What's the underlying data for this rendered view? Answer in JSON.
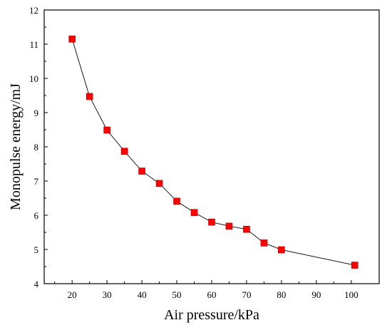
{
  "chart_data": {
    "type": "line",
    "title": "",
    "xlabel": "Air pressure/kPa",
    "ylabel": "Monopulse energy/mJ",
    "xlim": [
      12,
      108
    ],
    "ylim": [
      4,
      12
    ],
    "xticks": [
      20,
      30,
      40,
      50,
      60,
      70,
      80,
      90,
      100
    ],
    "yticks": [
      4,
      5,
      6,
      7,
      8,
      9,
      10,
      11,
      12
    ],
    "grid": false,
    "marker": "square",
    "colors": {
      "marker": "#ff0000",
      "line": "#000000"
    },
    "series": [
      {
        "x": [
          20,
          25,
          30,
          35,
          40,
          45,
          50,
          55,
          60,
          65,
          70,
          75,
          80,
          101
        ],
        "y": [
          11.15,
          9.47,
          8.49,
          7.87,
          7.29,
          6.93,
          6.41,
          6.08,
          5.8,
          5.68,
          5.59,
          5.19,
          4.99,
          4.54
        ]
      }
    ]
  }
}
